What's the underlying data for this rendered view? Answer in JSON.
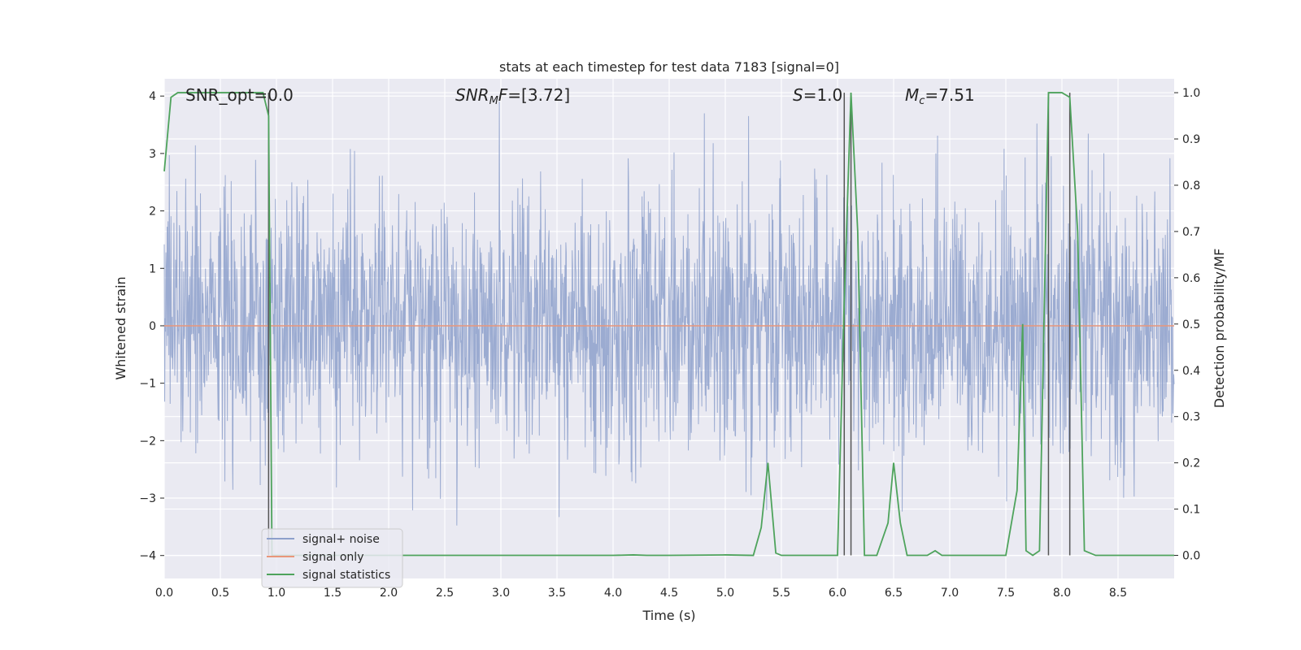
{
  "chart_data": {
    "type": "line",
    "title": "stats at each timestep for test data 7183 [signal=0]",
    "xlabel": "Time (s)",
    "ylabel_left": "Whitened strain",
    "ylabel_right": "Detection probability/MF",
    "xlim": [
      0,
      9
    ],
    "ylim_left": [
      -4.4,
      4.3
    ],
    "ylim_right": [
      -0.05,
      1.03
    ],
    "x_ticks": [
      "0.0",
      "0.5",
      "1.0",
      "1.5",
      "2.0",
      "2.5",
      "3.0",
      "3.5",
      "4.0",
      "4.5",
      "5.0",
      "5.5",
      "6.0",
      "6.5",
      "7.0",
      "7.5",
      "8.0",
      "8.5"
    ],
    "y_ticks_left": [
      "4",
      "3",
      "2",
      "1",
      "0",
      "−1",
      "−2",
      "−3",
      "−4"
    ],
    "y_ticks_right": [
      "1.0",
      "0.9",
      "0.8",
      "0.7",
      "0.6",
      "0.5",
      "0.4",
      "0.3",
      "0.2",
      "0.1",
      "0.0"
    ],
    "grid": true,
    "legend_position": "lower-left",
    "annotations": {
      "snr_opt": "SNR_opt=0.0",
      "snr_mf_main": "SNR",
      "snr_mf_sub": "M",
      "snr_mf_tail": "F=[3.72]",
      "s_main": "S",
      "s_tail": "=1.0",
      "mc_main": "M",
      "mc_sub": "c",
      "mc_tail": "=7.51"
    },
    "vertical_lines_x": [
      0.93,
      6.06,
      6.12,
      7.88,
      8.07
    ],
    "series": [
      {
        "name": "signal+ noise",
        "color": "#8da0cb",
        "description_axis": "left",
        "amplitude_envelope": [
          -4.0,
          3.9
        ]
      },
      {
        "name": "signal only",
        "color": "#e9967a",
        "axis": "left",
        "values_constant": 0.0
      },
      {
        "name": "signal statistics",
        "color": "#4ea35c",
        "axis": "right",
        "x": [
          0.0,
          0.06,
          0.12,
          0.18,
          0.24,
          0.3,
          0.36,
          0.42,
          0.48,
          0.54,
          0.6,
          0.66,
          0.72,
          0.78,
          0.84,
          0.88,
          0.93,
          0.96,
          1.0,
          1.5,
          2.0,
          2.5,
          3.0,
          3.5,
          4.0,
          4.18,
          4.3,
          4.5,
          5.0,
          5.25,
          5.32,
          5.38,
          5.45,
          5.5,
          6.0,
          6.06,
          6.12,
          6.18,
          6.24,
          6.35,
          6.45,
          6.5,
          6.56,
          6.62,
          6.8,
          6.87,
          6.93,
          7.0,
          7.5,
          7.6,
          7.65,
          7.68,
          7.74,
          7.8,
          7.88,
          7.94,
          8.0,
          8.07,
          8.14,
          8.2,
          8.3,
          8.6,
          9.0
        ],
        "y": [
          0.83,
          0.99,
          1.0,
          1.0,
          1.0,
          1.0,
          1.0,
          1.0,
          1.0,
          1.0,
          1.0,
          1.0,
          1.0,
          1.0,
          1.0,
          1.0,
          0.95,
          0.0,
          0.0,
          0.0,
          0.0,
          0.0,
          0.0,
          0.0,
          0.0,
          0.001,
          0.0,
          0.0,
          0.001,
          0.0,
          0.06,
          0.2,
          0.005,
          0.0,
          0.0,
          0.55,
          1.0,
          0.7,
          0.0,
          0.0,
          0.07,
          0.2,
          0.07,
          0.0,
          0.0,
          0.01,
          0.0,
          0.0,
          0.0,
          0.14,
          0.5,
          0.01,
          0.0,
          0.01,
          1.0,
          1.0,
          1.0,
          0.99,
          0.7,
          0.01,
          0.0,
          0.0,
          0.0
        ]
      }
    ]
  }
}
